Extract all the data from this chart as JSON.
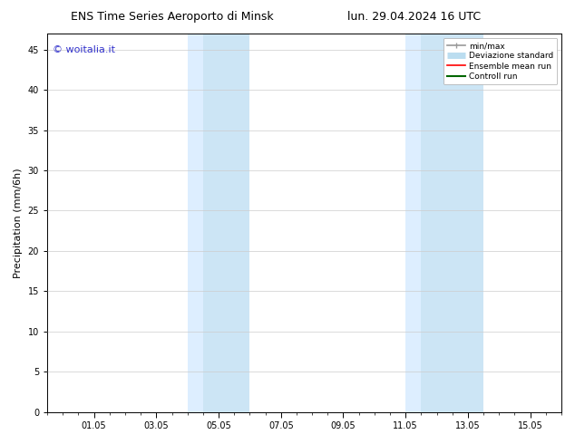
{
  "title_left": "ENS Time Series Aeroporto di Minsk",
  "title_right": "lun. 29.04.2024 16 UTC",
  "ylabel": "Precipitation (mm/6h)",
  "watermark": "© woitalia.it",
  "watermark_color": "#3333cc",
  "ylim": [
    0,
    47
  ],
  "yticks": [
    0,
    5,
    10,
    15,
    20,
    25,
    30,
    35,
    40,
    45
  ],
  "xtick_labels": [
    "01.05",
    "03.05",
    "05.05",
    "07.05",
    "09.05",
    "11.05",
    "13.05",
    "15.05"
  ],
  "xtick_positions": [
    2.0,
    6.0,
    10.0,
    14.0,
    18.0,
    22.0,
    26.0,
    30.0
  ],
  "xlim": [
    -1,
    32
  ],
  "shaded_bands": [
    {
      "x_start": 8.0,
      "x_end": 9.0,
      "color": "#ddeeff"
    },
    {
      "x_start": 9.0,
      "x_end": 12.0,
      "color": "#cce5f5"
    },
    {
      "x_start": 22.0,
      "x_end": 23.0,
      "color": "#ddeeff"
    },
    {
      "x_start": 23.0,
      "x_end": 27.0,
      "color": "#cce5f5"
    }
  ],
  "background_color": "#ffffff",
  "plot_bg_color": "#ffffff",
  "grid_color": "#cccccc",
  "legend_items": [
    {
      "label": "min/max",
      "color": "#999999",
      "lw": 1.2
    },
    {
      "label": "Deviazione standard",
      "color": "#bbddf0",
      "lw": 5
    },
    {
      "label": "Ensemble mean run",
      "color": "#ff0000",
      "lw": 1.2
    },
    {
      "label": "Controll run",
      "color": "#006600",
      "lw": 1.5
    }
  ],
  "title_fontsize": 9,
  "tick_fontsize": 7,
  "ylabel_fontsize": 8,
  "watermark_fontsize": 8
}
